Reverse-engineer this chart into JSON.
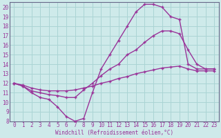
{
  "xlabel": "Windchill (Refroidissement éolien,°C)",
  "xlim": [
    -0.5,
    23.5
  ],
  "ylim": [
    8,
    20.5
  ],
  "xticks": [
    0,
    1,
    2,
    3,
    4,
    5,
    6,
    7,
    8,
    9,
    10,
    11,
    12,
    13,
    14,
    15,
    16,
    17,
    18,
    19,
    20,
    21,
    22,
    23
  ],
  "yticks": [
    8,
    9,
    10,
    11,
    12,
    13,
    14,
    15,
    16,
    17,
    18,
    19,
    20
  ],
  "background_color": "#ceeaea",
  "grid_color": "#aad4d4",
  "line_color": "#993399",
  "line1_x": [
    0,
    1,
    2,
    3,
    4,
    5,
    6,
    7,
    8,
    9,
    10,
    11,
    12,
    13,
    14,
    15,
    16,
    17,
    18,
    19,
    20,
    21,
    22,
    23
  ],
  "line1_y": [
    12.0,
    11.7,
    11.0,
    10.5,
    10.3,
    9.5,
    8.5,
    8.0,
    8.3,
    11.0,
    13.5,
    15.0,
    16.5,
    18.0,
    19.5,
    20.3,
    20.3,
    20.0,
    19.0,
    18.7,
    14.0,
    13.5,
    13.5,
    13.5
  ],
  "line2_x": [
    0,
    1,
    2,
    3,
    4,
    5,
    6,
    7,
    8,
    9,
    10,
    11,
    12,
    13,
    14,
    15,
    16,
    17,
    18,
    19,
    20,
    21,
    22,
    23
  ],
  "line2_y": [
    12.0,
    11.7,
    11.2,
    11.0,
    10.8,
    10.7,
    10.5,
    10.5,
    11.3,
    12.0,
    12.8,
    13.5,
    14.0,
    15.0,
    15.5,
    16.3,
    17.0,
    17.5,
    17.5,
    17.2,
    15.5,
    14.0,
    13.5,
    13.5
  ],
  "line3_x": [
    0,
    1,
    2,
    3,
    4,
    5,
    6,
    7,
    8,
    9,
    10,
    11,
    12,
    13,
    14,
    15,
    16,
    17,
    18,
    19,
    20,
    21,
    22,
    23
  ],
  "line3_y": [
    12.0,
    11.8,
    11.5,
    11.3,
    11.2,
    11.2,
    11.2,
    11.3,
    11.5,
    11.7,
    12.0,
    12.2,
    12.5,
    12.7,
    13.0,
    13.2,
    13.4,
    13.6,
    13.7,
    13.8,
    13.5,
    13.3,
    13.3,
    13.3
  ]
}
